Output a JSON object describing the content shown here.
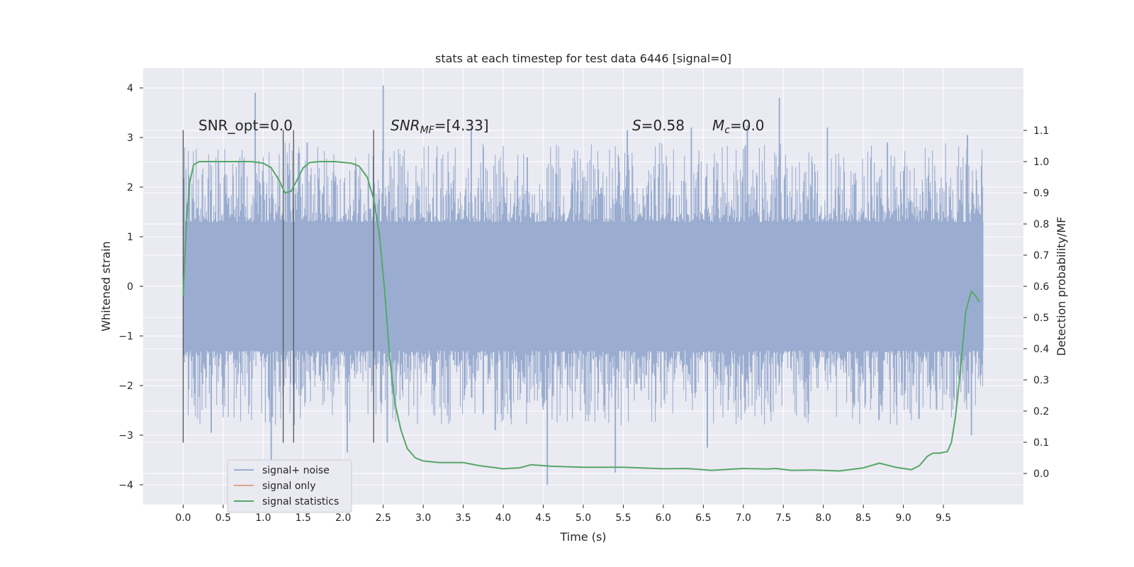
{
  "chart_data": {
    "type": "line",
    "title": "stats at each timestep for test data 6446 [signal=0]",
    "xlabel": "Time (s)",
    "ylabel": "Whitened strain",
    "ylabel_right": "Detection probability/MF",
    "xlim": [
      -0.5,
      10.5
    ],
    "ylim": [
      -4.4,
      4.4
    ],
    "ylim_right": [
      -0.1,
      1.3
    ],
    "x_ticks": [
      0.0,
      0.5,
      1.0,
      1.5,
      2.0,
      2.5,
      3.0,
      3.5,
      4.0,
      4.5,
      5.0,
      5.5,
      6.0,
      6.5,
      7.0,
      7.5,
      8.0,
      8.5,
      9.0,
      9.5
    ],
    "y_ticks": [
      -4,
      -3,
      -2,
      -1,
      0,
      1,
      2,
      3,
      4
    ],
    "y_ticks_right": [
      0.0,
      0.1,
      0.2,
      0.3,
      0.4,
      0.5,
      0.6,
      0.7,
      0.8,
      0.9,
      1.0,
      1.1
    ],
    "grid": true,
    "legend_position": "lower-left",
    "annotations": {
      "snr_opt": "SNR_opt=0.0",
      "snr_mf_name": "SNR",
      "snr_mf_sub": "MF",
      "snr_mf_value": "=[4.33]",
      "s_name": "S",
      "s_value": "=0.58",
      "mc_name": "M",
      "mc_sub": "c",
      "mc_value": "=0.0"
    },
    "vlines_x": [
      0.0,
      1.25,
      1.38,
      2.38
    ],
    "vlines_range": [
      -3.15,
      3.15
    ],
    "series": [
      {
        "name": "signal+ noise",
        "color": "#9aadd0",
        "axis": "left",
        "kind": "noise-band",
        "x_range": [
          0.0,
          10.0
        ],
        "core_amplitude": 1.3,
        "peaks_upper": [
          [
            0.9,
            3.9
          ],
          [
            2.5,
            4.05
          ],
          [
            7.45,
            3.8
          ],
          [
            1.55,
            2.9
          ],
          [
            3.6,
            3.2
          ],
          [
            5.55,
            3.15
          ],
          [
            6.35,
            3.2
          ],
          [
            7.05,
            3.25
          ],
          [
            9.8,
            3.05
          ],
          [
            8.05,
            3.2
          ],
          [
            4.3,
            2.6
          ],
          [
            8.8,
            2.9
          ]
        ],
        "peaks_lower": [
          [
            4.55,
            -4.0
          ],
          [
            5.4,
            -3.75
          ],
          [
            1.1,
            -3.5
          ],
          [
            2.05,
            -3.35
          ],
          [
            2.55,
            -3.15
          ],
          [
            9.85,
            -3.0
          ],
          [
            0.35,
            -2.95
          ],
          [
            6.55,
            -3.25
          ],
          [
            3.9,
            -2.9
          ]
        ]
      },
      {
        "name": "signal only",
        "color": "#e1a38a",
        "axis": "left",
        "x": [],
        "y": []
      },
      {
        "name": "signal statistics",
        "color": "#55a868",
        "axis": "right",
        "x": [
          0.0,
          0.04,
          0.08,
          0.13,
          0.2,
          0.35,
          0.6,
          0.85,
          1.0,
          1.1,
          1.2,
          1.27,
          1.35,
          1.42,
          1.5,
          1.58,
          1.7,
          1.9,
          2.1,
          2.2,
          2.3,
          2.38,
          2.45,
          2.52,
          2.58,
          2.65,
          2.72,
          2.8,
          2.9,
          3.0,
          3.2,
          3.5,
          3.7,
          4.0,
          4.2,
          4.35,
          4.6,
          5.0,
          5.5,
          6.0,
          6.3,
          6.6,
          7.0,
          7.3,
          7.4,
          7.6,
          7.9,
          8.2,
          8.5,
          8.7,
          8.9,
          9.1,
          9.2,
          9.3,
          9.37,
          9.45,
          9.55,
          9.6,
          9.65,
          9.7,
          9.78,
          9.85,
          9.9,
          9.95
        ],
        "y": [
          0.57,
          0.8,
          0.93,
          0.99,
          1.0,
          1.0,
          1.0,
          1.0,
          0.995,
          0.98,
          0.94,
          0.9,
          0.905,
          0.94,
          0.98,
          0.997,
          1.0,
          1.0,
          0.995,
          0.985,
          0.95,
          0.88,
          0.77,
          0.58,
          0.37,
          0.22,
          0.14,
          0.08,
          0.05,
          0.04,
          0.035,
          0.035,
          0.025,
          0.015,
          0.018,
          0.028,
          0.023,
          0.02,
          0.02,
          0.015,
          0.016,
          0.01,
          0.016,
          0.014,
          0.016,
          0.01,
          0.011,
          0.008,
          0.018,
          0.033,
          0.02,
          0.012,
          0.025,
          0.055,
          0.065,
          0.065,
          0.07,
          0.1,
          0.18,
          0.3,
          0.52,
          0.585,
          0.57,
          0.55
        ]
      }
    ]
  }
}
